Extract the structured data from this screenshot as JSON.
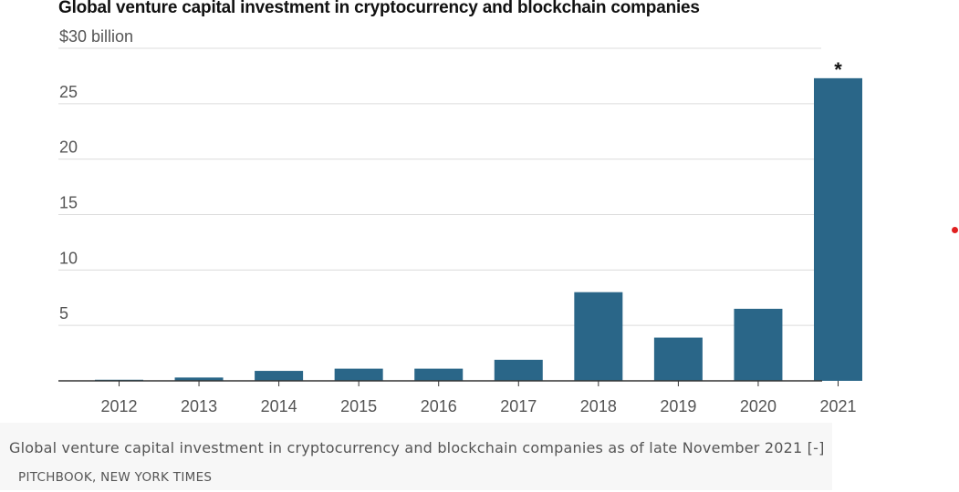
{
  "colors": {
    "bar": "#2a6688",
    "grid": "#dcdcdc",
    "axis": "#333333",
    "tick_text": "#555555",
    "title": "#111111",
    "caption_bg": "#f7f7f7",
    "dot": "#e02020"
  },
  "chart_data": {
    "type": "bar",
    "title": "Global venture capital investment in cryptocurrency and blockchain companies",
    "xlabel": "",
    "ylabel": "",
    "categories": [
      "2012",
      "2013",
      "2014",
      "2015",
      "2016",
      "2017",
      "2018",
      "2019",
      "2020",
      "2021"
    ],
    "values": [
      0.1,
      0.3,
      0.9,
      1.1,
      1.1,
      1.9,
      8.0,
      3.9,
      6.5,
      27.3
    ],
    "ylim": [
      0,
      30
    ],
    "yticks": [
      5,
      10,
      15,
      20,
      25,
      30
    ],
    "ytick_labels": [
      "5",
      "10",
      "15",
      "20",
      "25",
      "$30 billion"
    ],
    "grid": true,
    "annotations": [
      {
        "category": "2021",
        "text": "*"
      }
    ]
  },
  "caption": {
    "text": "Global venture capital investment in cryptocurrency and blockchain companies as of late November 2021 [-]",
    "credit": "PITCHBOOK, NEW YORK TIMES"
  }
}
